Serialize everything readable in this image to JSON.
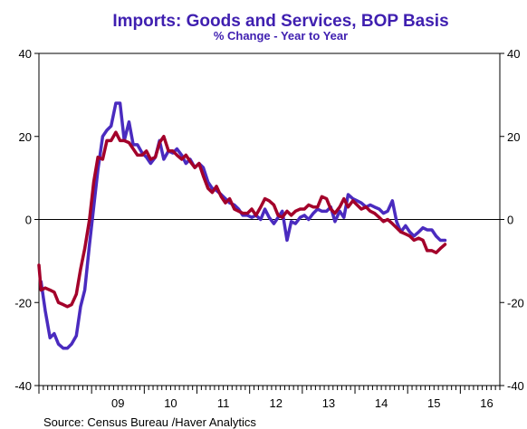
{
  "chart_data": {
    "type": "line",
    "title": "Imports: Goods and Services, BOP Basis",
    "subtitle": "% Change - Year to Year",
    "source": "Source:  Census Bureau /Haver Analytics",
    "ylim": [
      -40,
      40
    ],
    "yticks": [
      "40",
      "20",
      "0",
      "-20",
      "-40"
    ],
    "ytick_values": [
      40,
      20,
      0,
      -20,
      -40
    ],
    "xlim": [
      2008.0,
      2016.75
    ],
    "xticks": [
      "09",
      "10",
      "11",
      "12",
      "13",
      "14",
      "15",
      "16"
    ],
    "xtick_values": [
      2009,
      2010,
      2011,
      2012,
      2013,
      2014,
      2015,
      2016
    ],
    "grid": false,
    "zero_line": true,
    "series": [
      {
        "color": "#4a2bbf",
        "x": [
          2008.04,
          2008.12,
          2008.21,
          2008.29,
          2008.37,
          2008.46,
          2008.54,
          2008.62,
          2008.71,
          2008.79,
          2008.87,
          2008.96,
          2009.04,
          2009.12,
          2009.21,
          2009.29,
          2009.37,
          2009.46,
          2009.54,
          2009.62,
          2009.71,
          2009.79,
          2009.87,
          2009.96,
          2010.04,
          2010.12,
          2010.21,
          2010.29,
          2010.37,
          2010.46,
          2010.54,
          2010.62,
          2010.71,
          2010.79,
          2010.87,
          2010.96,
          2011.04,
          2011.12,
          2011.21,
          2011.29,
          2011.37,
          2011.46,
          2011.54,
          2011.62,
          2011.71,
          2011.79,
          2011.87,
          2011.96,
          2012.04,
          2012.12,
          2012.21,
          2012.29,
          2012.37,
          2012.46,
          2012.54,
          2012.62,
          2012.71,
          2012.79,
          2012.87,
          2012.96,
          2013.04,
          2013.12,
          2013.21,
          2013.29,
          2013.37,
          2013.46,
          2013.54,
          2013.62,
          2013.71,
          2013.79,
          2013.87,
          2013.96,
          2014.04,
          2014.12,
          2014.21,
          2014.29,
          2014.37,
          2014.46,
          2014.54,
          2014.62,
          2014.71,
          2014.79,
          2014.87,
          2014.96,
          2015.04,
          2015.12,
          2015.21,
          2015.29,
          2015.37,
          2015.46,
          2015.54,
          2015.62,
          2015.71
        ],
        "values": [
          -15,
          -22,
          -28.5,
          -27.5,
          -30,
          -31,
          -31,
          -30,
          -28,
          -21,
          -17,
          -6,
          3,
          12,
          20,
          21.5,
          22.5,
          28,
          28,
          19,
          23.5,
          18,
          18,
          16,
          15,
          13.5,
          15,
          19,
          14.5,
          16.5,
          16,
          17,
          15.5,
          13.5,
          14.5,
          12.5,
          13.5,
          12.5,
          9,
          7.5,
          7,
          6,
          5,
          4,
          3.5,
          2.5,
          1,
          1,
          0.5,
          1,
          0,
          2.5,
          0.5,
          -1,
          0.5,
          2,
          -5,
          -0.5,
          -1,
          0.5,
          1,
          0,
          1.5,
          2.5,
          2,
          2,
          3,
          -0.5,
          2,
          0.5,
          6,
          5,
          4.5,
          4,
          3,
          3.5,
          3,
          2.5,
          1.5,
          2,
          4.5,
          -0.5,
          -3,
          -1.5,
          -3,
          -4,
          -3,
          -2,
          -2.5,
          -2.5,
          -4,
          -5,
          -5
        ]
      },
      {
        "color": "#a3002a",
        "x": [
          2008.0,
          2008.04,
          2008.12,
          2008.21,
          2008.29,
          2008.37,
          2008.46,
          2008.54,
          2008.62,
          2008.71,
          2008.79,
          2008.87,
          2008.96,
          2009.04,
          2009.12,
          2009.21,
          2009.29,
          2009.37,
          2009.46,
          2009.54,
          2009.62,
          2009.71,
          2009.79,
          2009.87,
          2009.96,
          2010.04,
          2010.12,
          2010.21,
          2010.29,
          2010.37,
          2010.46,
          2010.54,
          2010.62,
          2010.71,
          2010.79,
          2010.87,
          2010.96,
          2011.04,
          2011.12,
          2011.21,
          2011.29,
          2011.37,
          2011.46,
          2011.54,
          2011.62,
          2011.71,
          2011.79,
          2011.87,
          2011.96,
          2012.04,
          2012.12,
          2012.21,
          2012.29,
          2012.37,
          2012.46,
          2012.54,
          2012.62,
          2012.71,
          2012.79,
          2012.87,
          2012.96,
          2013.04,
          2013.12,
          2013.21,
          2013.29,
          2013.37,
          2013.46,
          2013.54,
          2013.62,
          2013.71,
          2013.79,
          2013.87,
          2013.96,
          2014.04,
          2014.12,
          2014.21,
          2014.29,
          2014.37,
          2014.46,
          2014.54,
          2014.62,
          2014.71,
          2014.79,
          2014.87,
          2014.96,
          2015.04,
          2015.12,
          2015.21,
          2015.29,
          2015.37,
          2015.46,
          2015.54,
          2015.62,
          2015.71
        ],
        "values": [
          -11,
          -17,
          -16.5,
          -17,
          -17.5,
          -20,
          -20.5,
          -21,
          -20.5,
          -18,
          -12,
          -7,
          0,
          9,
          15,
          14.5,
          19,
          19,
          21,
          19,
          19,
          18.5,
          17,
          15.5,
          15.5,
          16.5,
          14.5,
          15,
          18.5,
          20,
          16.5,
          16.5,
          15.5,
          14.5,
          15.5,
          14,
          12.5,
          13.5,
          10.5,
          7.5,
          6.5,
          8,
          5.5,
          4,
          5,
          2.5,
          2,
          1.5,
          1.5,
          2.5,
          1,
          3,
          5,
          4.5,
          3.5,
          1,
          0.5,
          2,
          1,
          2,
          2.5,
          2.5,
          3.5,
          3,
          3,
          5.5,
          5,
          2.5,
          1.5,
          3,
          5,
          3,
          4.5,
          3.5,
          2.5,
          3,
          2,
          1.5,
          0.5,
          -0.5,
          0,
          -1,
          -2,
          -3,
          -3.5,
          -4,
          -5,
          -4.5,
          -5,
          -7.5,
          -7.5,
          -8,
          -7,
          -6
        ]
      }
    ]
  }
}
